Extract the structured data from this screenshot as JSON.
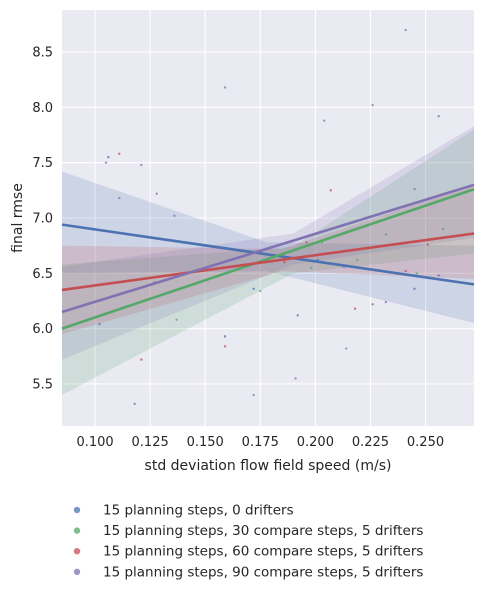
{
  "chart_data": {
    "type": "scatter",
    "title": "",
    "xlabel": "std deviation flow field speed (m/s)",
    "ylabel": "final rmse",
    "xlim": [
      0.085,
      0.272
    ],
    "ylim": [
      5.12,
      8.88
    ],
    "xticks": [
      "0.100",
      "0.125",
      "0.150",
      "0.175",
      "0.200",
      "0.225",
      "0.250"
    ],
    "yticks": [
      "5.5",
      "6.0",
      "6.5",
      "7.0",
      "7.5",
      "8.0",
      "8.5"
    ],
    "xtick_values": [
      0.1,
      0.125,
      0.15,
      0.175,
      0.2,
      0.225,
      0.25
    ],
    "ytick_values": [
      5.5,
      6.0,
      6.5,
      7.0,
      7.5,
      8.0,
      8.5
    ],
    "grid": true,
    "background": "#eaeaf2",
    "legend_position": "below",
    "series": [
      {
        "name": "15 planning steps, 0 drifters",
        "color": "#4c72b0",
        "fit": [
          [
            0.085,
            6.94
          ],
          [
            0.272,
            6.4
          ]
        ],
        "band": [
          [
            0.085,
            6.5,
            7.42
          ],
          [
            0.178,
            6.52,
            6.78
          ],
          [
            0.272,
            6.05,
            6.75
          ]
        ],
        "points": [
          [
            0.102,
            6.04
          ],
          [
            0.106,
            7.55
          ],
          [
            0.118,
            6.35
          ],
          [
            0.121,
            6.45
          ],
          [
            0.159,
            5.93
          ],
          [
            0.172,
            6.36
          ],
          [
            0.192,
            6.12
          ],
          [
            0.201,
            6.62
          ],
          [
            0.226,
            6.22
          ],
          [
            0.245,
            6.36
          ],
          [
            0.256,
            6.48
          ],
          [
            0.213,
            6.56
          ]
        ]
      },
      {
        "name": "15 planning steps, 30 compare steps, 5 drifters",
        "color": "#55a868",
        "fit": [
          [
            0.085,
            6.0
          ],
          [
            0.272,
            7.26
          ]
        ],
        "band": [
          [
            0.085,
            5.4,
            6.58
          ],
          [
            0.19,
            6.5,
            6.74
          ],
          [
            0.272,
            6.68,
            7.8
          ]
        ],
        "points": [
          [
            0.105,
            6.14
          ],
          [
            0.127,
            6.42
          ],
          [
            0.137,
            6.08
          ],
          [
            0.175,
            6.34
          ],
          [
            0.198,
            6.55
          ],
          [
            0.203,
            6.78
          ],
          [
            0.219,
            6.62
          ],
          [
            0.232,
            6.85
          ],
          [
            0.246,
            6.5
          ],
          [
            0.258,
            6.9
          ]
        ]
      },
      {
        "name": "15 planning steps, 60 compare steps, 5 drifters",
        "color": "#c44e52",
        "fit": [
          [
            0.085,
            6.35
          ],
          [
            0.272,
            6.86
          ]
        ],
        "band": [
          [
            0.085,
            5.95,
            6.75
          ],
          [
            0.185,
            6.52,
            6.72
          ],
          [
            0.272,
            6.45,
            7.3
          ]
        ],
        "points": [
          [
            0.111,
            7.58
          ],
          [
            0.121,
            5.72
          ],
          [
            0.159,
            5.84
          ],
          [
            0.186,
            6.6
          ],
          [
            0.196,
            6.78
          ],
          [
            0.207,
            7.25
          ],
          [
            0.218,
            6.18
          ],
          [
            0.241,
            6.52
          ],
          [
            0.251,
            6.76
          ]
        ]
      },
      {
        "name": "15 planning steps, 90 compare steps, 5 drifters",
        "color": "#8172b2",
        "fit": [
          [
            0.085,
            6.15
          ],
          [
            0.272,
            7.3
          ]
        ],
        "band": [
          [
            0.085,
            5.72,
            6.56
          ],
          [
            0.19,
            6.58,
            6.86
          ],
          [
            0.272,
            6.82,
            7.83
          ]
        ],
        "points": [
          [
            0.105,
            7.5
          ],
          [
            0.111,
            7.18
          ],
          [
            0.118,
            5.32
          ],
          [
            0.121,
            7.48
          ],
          [
            0.128,
            7.22
          ],
          [
            0.136,
            7.02
          ],
          [
            0.159,
            8.18
          ],
          [
            0.172,
            5.4
          ],
          [
            0.191,
            5.55
          ],
          [
            0.204,
            7.88
          ],
          [
            0.214,
            5.82
          ],
          [
            0.226,
            8.02
          ],
          [
            0.241,
            8.7
          ],
          [
            0.256,
            7.92
          ],
          [
            0.245,
            7.26
          ],
          [
            0.232,
            6.24
          ]
        ]
      }
    ]
  }
}
